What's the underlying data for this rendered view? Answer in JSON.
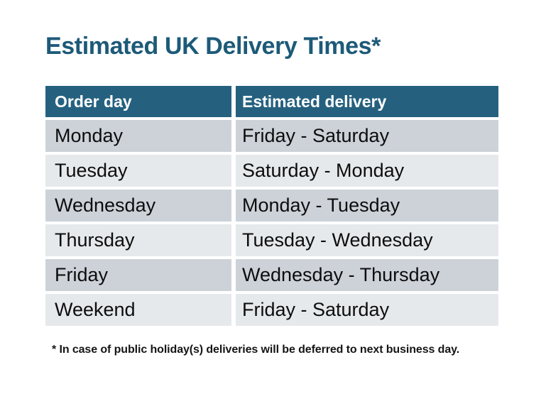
{
  "title": "Estimated UK Delivery Times*",
  "table": {
    "columns": [
      "Order day",
      "Estimated delivery"
    ],
    "rows": [
      {
        "order_day": "Monday",
        "estimated_delivery": "Friday - Saturday"
      },
      {
        "order_day": "Tuesday",
        "estimated_delivery": "Saturday - Monday"
      },
      {
        "order_day": "Wednesday",
        "estimated_delivery": "Monday - Tuesday"
      },
      {
        "order_day": "Thursday",
        "estimated_delivery": "Tuesday - Wednesday"
      },
      {
        "order_day": "Friday",
        "estimated_delivery": "Wednesday - Thursday"
      },
      {
        "order_day": "Weekend",
        "estimated_delivery": "Friday - Saturday"
      }
    ]
  },
  "footnote": "* In case of public holiday(s) deliveries will be deferred to next business day.",
  "colors": {
    "title_text": "#1d5a78",
    "header_bg": "#25617f",
    "header_text": "#ffffff",
    "row_dark_bg": "#cdd2d9",
    "row_light_bg": "#e6e9ec",
    "body_text": "#0d0d0d",
    "background": "#ffffff"
  }
}
